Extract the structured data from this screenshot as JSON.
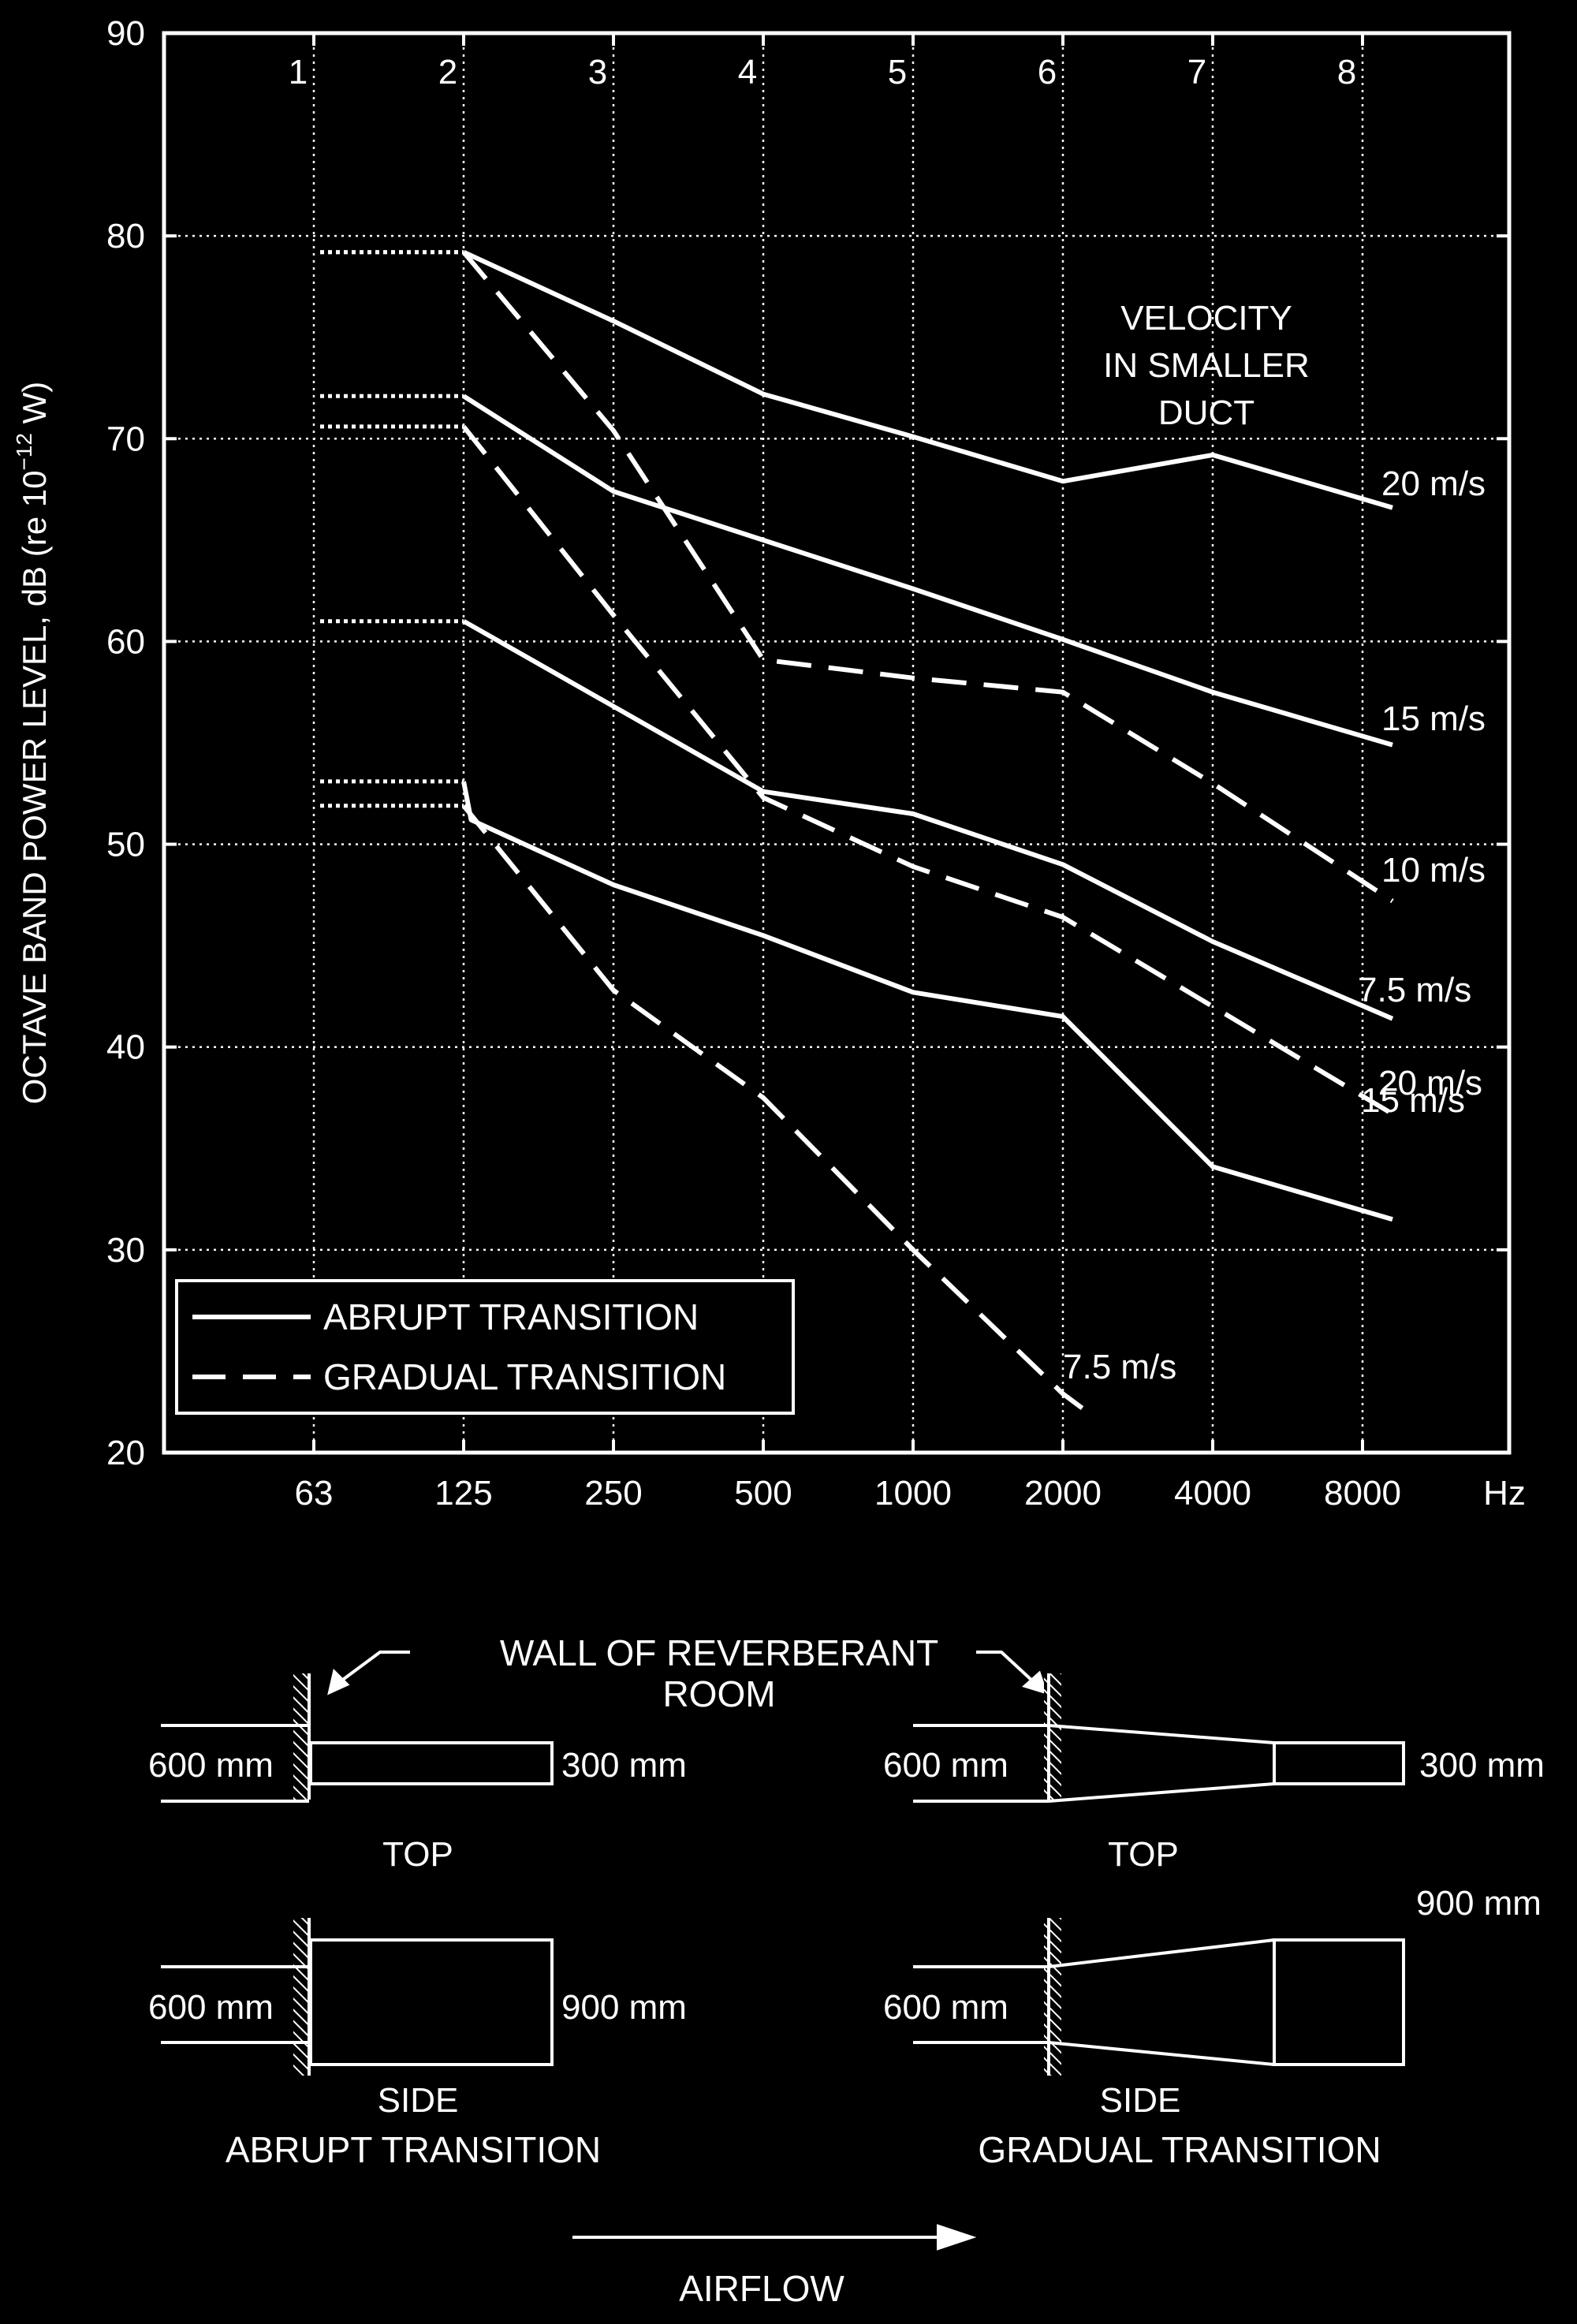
{
  "chart_data": {
    "type": "line",
    "ylabel": "OCTAVE BAND POWER LEVEL, dB (re 10",
    "ylabel_sup": "−12",
    "ylabel_tail": " W)",
    "x_unit": "Hz",
    "x_categories": [
      "63",
      "125",
      "250",
      "500",
      "1000",
      "2000",
      "4000",
      "8000"
    ],
    "band_numbers": [
      "1",
      "2",
      "3",
      "4",
      "5",
      "6",
      "7",
      "8"
    ],
    "y_ticks": [
      "20",
      "30",
      "40",
      "50",
      "60",
      "70",
      "80",
      "90"
    ],
    "ylim": [
      20,
      90
    ],
    "grid": true,
    "velocity_heading": [
      "VELOCITY",
      "IN SMALLER",
      "DUCT"
    ],
    "legend": {
      "placement": "bottom-left",
      "entries": [
        {
          "label": "ABRUPT TRANSITION",
          "style": "solid"
        },
        {
          "label": "GRADUAL TRANSITION",
          "style": "dashed"
        }
      ]
    },
    "series": [
      {
        "name": "20 m/s",
        "style": "solid",
        "dotted_start": 79.2,
        "points": [
          [
            1,
            79.2
          ],
          [
            2,
            75.8
          ],
          [
            3,
            72.2
          ],
          [
            4,
            70.1
          ],
          [
            5,
            67.9
          ],
          [
            6,
            69.2
          ],
          [
            7.2,
            66.6
          ]
        ]
      },
      {
        "name": "15 m/s",
        "style": "solid",
        "dotted_start": 72.1,
        "points": [
          [
            1,
            72.1
          ],
          [
            2,
            67.4
          ],
          [
            3,
            65.0
          ],
          [
            4,
            62.6
          ],
          [
            5,
            60.1
          ],
          [
            6,
            57.5
          ],
          [
            7.2,
            54.9
          ]
        ]
      },
      {
        "name": "10 m/s",
        "style": "solid",
        "dotted_start": 61.0,
        "points": [
          [
            1,
            61.0
          ],
          [
            2,
            56.8
          ],
          [
            3,
            52.6
          ],
          [
            4,
            51.5
          ],
          [
            5,
            49.0
          ],
          [
            6,
            45.2
          ],
          [
            7.2,
            41.4
          ]
        ]
      },
      {
        "name": "7.5 m/s",
        "style": "solid",
        "dotted_start": 53.1,
        "points": [
          [
            1,
            53.1
          ],
          [
            1.05,
            51.2
          ],
          [
            2,
            48.0
          ],
          [
            3,
            45.5
          ],
          [
            4,
            42.7
          ],
          [
            5,
            41.5
          ],
          [
            6,
            34.1
          ],
          [
            7.2,
            31.5
          ]
        ]
      },
      {
        "name": "20 m/s",
        "style": "dashed",
        "dotted_start": 79.2,
        "points": [
          [
            1,
            79.2
          ],
          [
            2,
            70.4
          ],
          [
            3,
            59.1
          ],
          [
            4,
            58.2
          ],
          [
            5,
            57.5
          ],
          [
            6,
            53.0
          ],
          [
            7.2,
            47.2
          ]
        ]
      },
      {
        "name": "15 m/s",
        "style": "dashed",
        "dotted_start": 70.6,
        "points": [
          [
            1,
            70.6
          ],
          [
            2,
            61.3
          ],
          [
            3,
            52.3
          ],
          [
            4,
            48.9
          ],
          [
            5,
            46.4
          ],
          [
            6,
            42.0
          ],
          [
            7.2,
            36.7
          ]
        ]
      },
      {
        "name": "7.5 m/s",
        "style": "dashed",
        "dotted_start": 51.9,
        "points": [
          [
            1,
            51.9
          ],
          [
            2,
            42.8
          ],
          [
            3,
            37.5
          ],
          [
            4,
            30.0
          ],
          [
            5,
            22.9
          ],
          [
            5.2,
            21.8
          ]
        ]
      }
    ]
  },
  "diagram": {
    "wall_label": [
      "WALL OF REVERBERANT",
      "ROOM"
    ],
    "abrupt": {
      "top_left_dim": "600 mm",
      "top_right_dim": "300 mm",
      "top_caption": "TOP",
      "side_left_dim": "600 mm",
      "side_right_dim": "900 mm",
      "side_caption": "SIDE",
      "title": "ABRUPT TRANSITION"
    },
    "gradual": {
      "top_left_dim": "600 mm",
      "top_right_dim": "300 mm",
      "top_caption": "TOP",
      "side_left_dim": "600 mm",
      "side_right_dim": "900 mm",
      "side_caption": "SIDE",
      "title": "GRADUAL TRANSITION"
    },
    "airflow_label": "AIRFLOW"
  }
}
